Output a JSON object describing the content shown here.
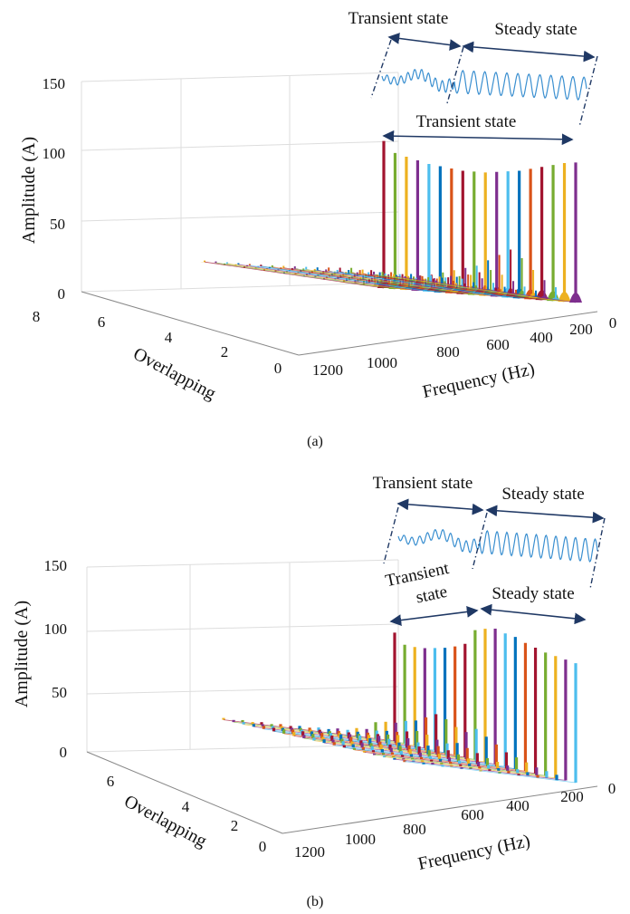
{
  "figure": {
    "caption_a": "(a)",
    "caption_b": "(b)"
  },
  "colors": {
    "series": [
      "#A2142F",
      "#77AC30",
      "#EDB120",
      "#7E2F8E",
      "#4DBEEE",
      "#0072BD",
      "#D95319"
    ],
    "waveform": "#3A8FD0",
    "arrow": "#1F3864",
    "grid": "#dddddd",
    "text": "#111111"
  },
  "chart_data": [
    {
      "panel": "a",
      "type": "3d-spectrum-stems",
      "title": "",
      "zlabel": "Amplitude (A)",
      "xlabel": "Frequency (Hz)",
      "ylabel": "Overlapping",
      "zlim": [
        0,
        150
      ],
      "z_ticks": [
        "0",
        "50",
        "100",
        "150"
      ],
      "x_ticks": [
        "0",
        "200",
        "400",
        "600",
        "800",
        "1000",
        "1200"
      ],
      "y_ticks": [
        "0",
        "2",
        "4",
        "6",
        "8"
      ],
      "grid": true,
      "annotations": {
        "transient_top": "Transient state",
        "steady_top": "Steady state",
        "transient_spectrum": "Transient state"
      },
      "main_peak_values": [
        105,
        97,
        95,
        93,
        91,
        90,
        89,
        88,
        88,
        88,
        89,
        90,
        91,
        93,
        95,
        97,
        99,
        100
      ],
      "side_peak_values": [
        3,
        4,
        5,
        6,
        7,
        9,
        10,
        12,
        14,
        16,
        18,
        22,
        26,
        30,
        25,
        18,
        12,
        8
      ]
    },
    {
      "panel": "b",
      "type": "3d-spectrum-stems",
      "title": "",
      "zlabel": "Amplitude (A)",
      "xlabel": "Frequency (Hz)",
      "ylabel": "Overlapping",
      "zlim": [
        0,
        150
      ],
      "z_ticks": [
        "0",
        "50",
        "100",
        "150"
      ],
      "x_ticks": [
        "0",
        "200",
        "400",
        "600",
        "800",
        "1000",
        "1200"
      ],
      "y_ticks": [
        "0",
        "2",
        "4",
        "6"
      ],
      "grid": true,
      "annotations": {
        "transient_top": "Transient state",
        "steady_top": "Steady state",
        "transient_spectrum_line1": "Transient",
        "transient_spectrum_line2": "state",
        "steady_spectrum": "Steady state"
      },
      "main_peak_values": [
        88,
        80,
        80,
        81,
        83,
        85,
        88,
        92,
        105,
        108,
        110,
        108,
        107,
        104,
        102,
        100,
        99,
        98,
        97
      ],
      "side_peak_values": [
        12,
        14,
        15,
        18,
        20,
        24,
        28,
        26,
        22,
        20,
        24,
        20,
        16,
        12,
        10,
        8,
        6,
        5,
        4
      ]
    }
  ]
}
